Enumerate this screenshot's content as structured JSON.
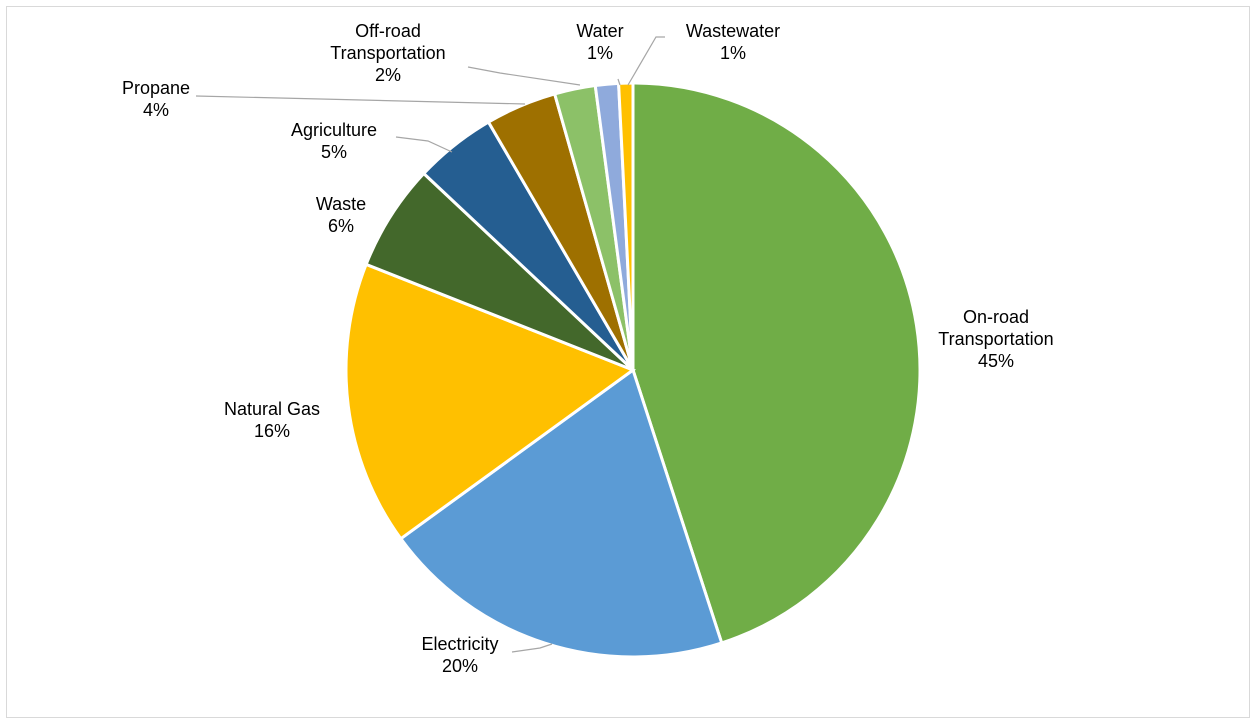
{
  "chart_data": {
    "type": "pie",
    "title": "",
    "unit": "%",
    "start_angle_deg": 0,
    "direction": "clockwise",
    "slices": [
      {
        "name": "On-road Transportation",
        "name_lines": [
          "On-road",
          "Transportation"
        ],
        "value": 45,
        "label": "45%",
        "color": "#70ad47"
      },
      {
        "name": "Electricity",
        "name_lines": [
          "Electricity"
        ],
        "value": 20,
        "label": "20%",
        "color": "#5b9bd5"
      },
      {
        "name": "Natural Gas",
        "name_lines": [
          "Natural Gas"
        ],
        "value": 16,
        "label": "16%",
        "color": "#ffc000"
      },
      {
        "name": "Waste",
        "name_lines": [
          "Waste"
        ],
        "value": 6,
        "label": "6%",
        "color": "#43682b"
      },
      {
        "name": "Agriculture",
        "name_lines": [
          "Agriculture"
        ],
        "value": 4.6,
        "label": "5%",
        "color": "#255e91"
      },
      {
        "name": "Propane",
        "name_lines": [
          "Propane"
        ],
        "value": 4,
        "label": "4%",
        "color": "#9e7000"
      },
      {
        "name": "Off-road Transportation",
        "name_lines": [
          "Off-road",
          "Transportation"
        ],
        "value": 2.3,
        "label": "2%",
        "color": "#8cc168"
      },
      {
        "name": "Water",
        "name_lines": [
          "Water"
        ],
        "value": 1.3,
        "label": "1%",
        "color": "#8faadc"
      },
      {
        "name": "Wastewater",
        "name_lines": [
          "Wastewater"
        ],
        "value": 0.8,
        "label": "1%",
        "color": "#ffc000"
      }
    ],
    "legend": "none",
    "data_labels": "category name and percentage"
  }
}
